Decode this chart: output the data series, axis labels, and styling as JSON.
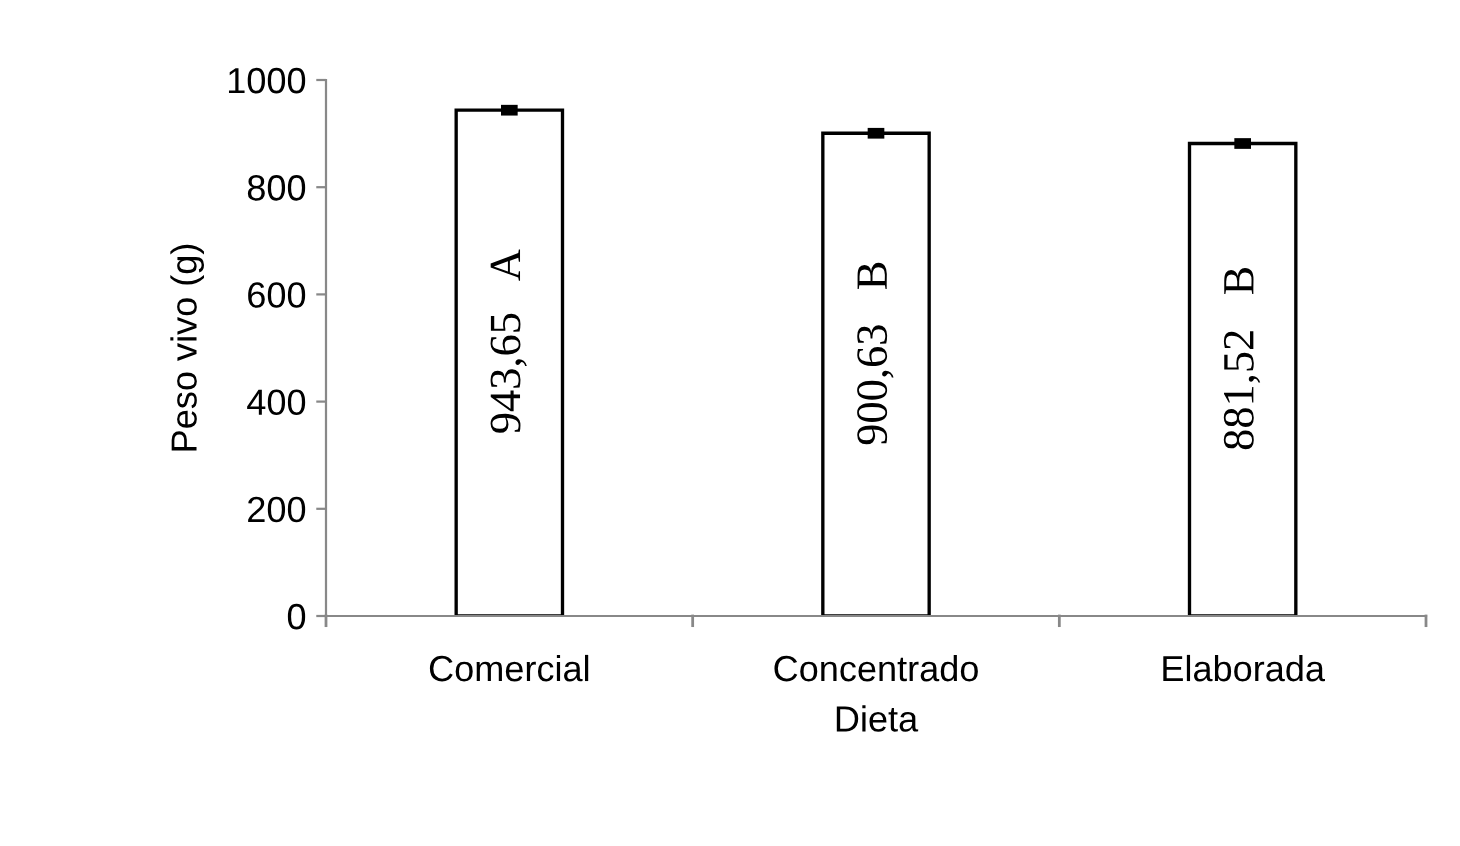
{
  "chart_data": {
    "type": "bar",
    "xlabel": "Dieta",
    "ylabel": "Peso vivo (g)",
    "categories": [
      "Comercial",
      "Concentrado",
      "Elaborada"
    ],
    "values": [
      943.65,
      900.63,
      881.52
    ],
    "errors": [
      10,
      10,
      10
    ],
    "value_labels": [
      "943,65   A",
      "900,63   B",
      "881,52   B"
    ],
    "color": "#ffffff",
    "ylim": [
      0,
      1000
    ],
    "yticks": [
      0,
      200,
      400,
      600,
      800,
      1000
    ],
    "grid": false,
    "legend": false
  }
}
